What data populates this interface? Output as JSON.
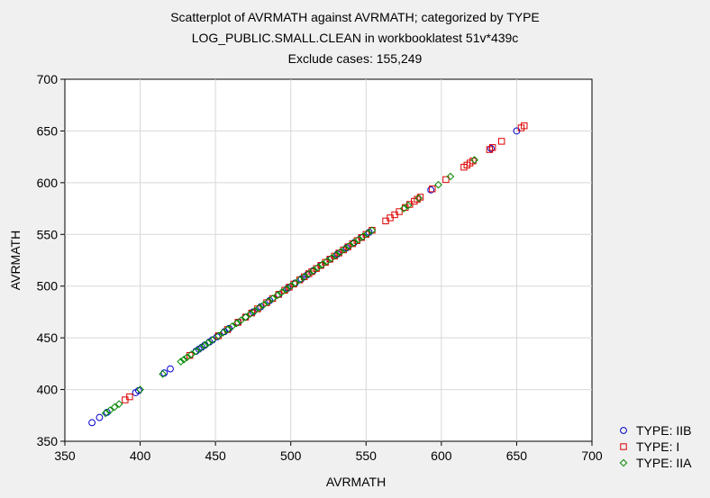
{
  "chart_data": {
    "type": "scatter",
    "title": [
      "Scatterplot of AVRMATH against AVRMATH; categorized by TYPE",
      "LOG_PUBLIC.SMALL.CLEAN in workbooklatest 51v*439c",
      "Exclude cases: 155,249"
    ],
    "xlabel": "AVRMATH",
    "ylabel": "AVRMATH",
    "xlim": [
      350,
      700
    ],
    "ylim": [
      350,
      700
    ],
    "xticks": [
      "350",
      "400",
      "450",
      "500",
      "550",
      "600",
      "650",
      "700"
    ],
    "yticks": [
      "350",
      "400",
      "450",
      "500",
      "550",
      "600",
      "650",
      "700"
    ],
    "grid": true,
    "legend_position": "bottom-right, outside",
    "colors": {
      "IIB": "#0000cc",
      "I": "#dd0000",
      "IIA": "#008800",
      "grid": "#d8d8d8",
      "plot_bg": "#ffffff"
    },
    "series": [
      {
        "name": "TYPE: IIB",
        "marker": "circle",
        "x": [
          368,
          373,
          378,
          397,
          399,
          416,
          420,
          437,
          439,
          441,
          443,
          446,
          448,
          451,
          456,
          459,
          465,
          470,
          475,
          480,
          486,
          492,
          498,
          503,
          507,
          511,
          515,
          520,
          526,
          531,
          537,
          542,
          547,
          552,
          593,
          633,
          650
        ],
        "y": [
          368,
          373,
          378,
          397,
          399,
          416,
          420,
          437,
          439,
          441,
          443,
          446,
          448,
          451,
          456,
          459,
          465,
          470,
          475,
          480,
          486,
          492,
          498,
          503,
          507,
          511,
          515,
          520,
          526,
          531,
          537,
          542,
          547,
          552,
          593,
          633,
          650
        ]
      },
      {
        "name": "TYPE: I",
        "marker": "square",
        "x": [
          390,
          393,
          433,
          452,
          458,
          465,
          470,
          474,
          478,
          484,
          488,
          492,
          496,
          499,
          502,
          506,
          509,
          512,
          514,
          517,
          520,
          523,
          526,
          529,
          532,
          535,
          538,
          541,
          544,
          547,
          550,
          554,
          563,
          566,
          569,
          572,
          576,
          579,
          582,
          584,
          586,
          594,
          603,
          615,
          617,
          619,
          621,
          632,
          634,
          640,
          653,
          655
        ],
        "y": [
          390,
          393,
          433,
          452,
          458,
          465,
          470,
          474,
          478,
          484,
          488,
          492,
          496,
          499,
          502,
          506,
          509,
          512,
          514,
          517,
          520,
          523,
          526,
          529,
          532,
          535,
          538,
          541,
          544,
          547,
          550,
          554,
          563,
          566,
          569,
          572,
          576,
          579,
          582,
          584,
          586,
          594,
          603,
          615,
          617,
          619,
          621,
          632,
          634,
          640,
          653,
          655
        ]
      },
      {
        "name": "TYPE: IIA",
        "marker": "diamond",
        "x": [
          377,
          380,
          383,
          386,
          400,
          415,
          427,
          429,
          431,
          434,
          437,
          440,
          443,
          445,
          448,
          452,
          455,
          458,
          461,
          464,
          467,
          470,
          473,
          476,
          479,
          482,
          485,
          488,
          491,
          494,
          497,
          500,
          503,
          506,
          509,
          512,
          515,
          518,
          521,
          524,
          527,
          530,
          533,
          536,
          539,
          542,
          545,
          548,
          551,
          554,
          575,
          578,
          585,
          598,
          606,
          622
        ],
        "y": [
          377,
          380,
          383,
          386,
          400,
          415,
          427,
          429,
          431,
          434,
          437,
          440,
          443,
          445,
          448,
          452,
          455,
          458,
          461,
          464,
          467,
          470,
          473,
          476,
          479,
          482,
          485,
          488,
          491,
          494,
          497,
          500,
          503,
          506,
          509,
          512,
          515,
          518,
          521,
          524,
          527,
          530,
          533,
          536,
          539,
          542,
          545,
          548,
          551,
          554,
          575,
          578,
          585,
          598,
          606,
          622
        ]
      }
    ]
  }
}
